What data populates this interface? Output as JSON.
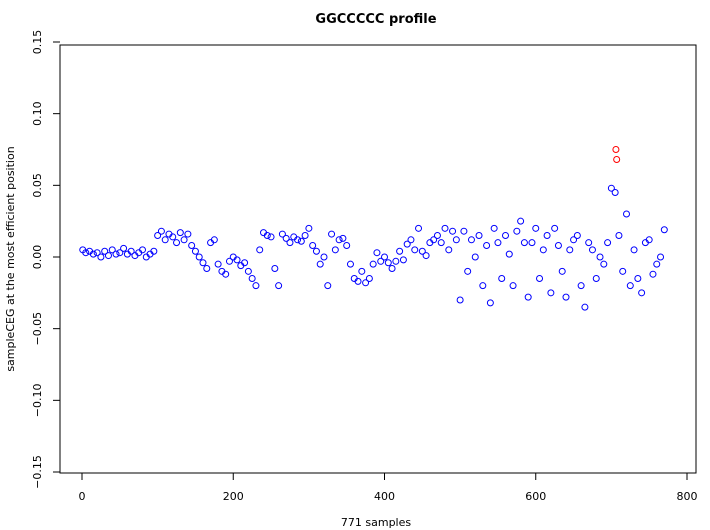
{
  "chart_data": {
    "type": "scatter",
    "title": "GGCCCCC profile",
    "xlabel": "771 samples",
    "ylabel": "sampleCEG at the most efficient position",
    "xlim": [
      -30,
      800
    ],
    "ylim": [
      -0.15,
      0.15
    ],
    "xticks": [
      0,
      200,
      400,
      600,
      800
    ],
    "yticks": [
      -0.15,
      -0.1,
      -0.05,
      0.0,
      0.05,
      0.1,
      0.15
    ],
    "xtick_labels": [
      "0",
      "200",
      "400",
      "600",
      "800"
    ],
    "ytick_labels": [
      "−0.15",
      "−0.10",
      "−0.05",
      "0.00",
      "0.05",
      "0.10",
      "0.15"
    ],
    "grid": false,
    "marker": "open-circle",
    "colors": {
      "normal": "#0000ff",
      "highlight": "#ff0000"
    },
    "series": [
      {
        "color": "#0000ff",
        "x": [
          1,
          5,
          10,
          15,
          20,
          25,
          30,
          35,
          40,
          45,
          50,
          55,
          60,
          65,
          70,
          75,
          80,
          85,
          90,
          95,
          100,
          105,
          110,
          115,
          120,
          125,
          130,
          135,
          140,
          145,
          150,
          155,
          160,
          165,
          170,
          175,
          180,
          185,
          190,
          195,
          200,
          205,
          210,
          215,
          220,
          225,
          230,
          235,
          240,
          245,
          250,
          255,
          260,
          265,
          270,
          275,
          280,
          285,
          290,
          295,
          300,
          305,
          310,
          315,
          320,
          325,
          330,
          335,
          340,
          345,
          350,
          355,
          360,
          365,
          370,
          375,
          380,
          385,
          390,
          395,
          400,
          405,
          410,
          415,
          420,
          425,
          430,
          435,
          440,
          445,
          450,
          455,
          460,
          465,
          470,
          475,
          480,
          485,
          490,
          495,
          500,
          505,
          510,
          515,
          520,
          525,
          530,
          535,
          540,
          545,
          550,
          555,
          560,
          565,
          570,
          575,
          580,
          585,
          590,
          595,
          600,
          605,
          610,
          615,
          620,
          625,
          630,
          635,
          640,
          645,
          650,
          655,
          660,
          665,
          670,
          675,
          680,
          685,
          690,
          695,
          700,
          705,
          710,
          715,
          720,
          725,
          730,
          735,
          740,
          745,
          750,
          755,
          760,
          765,
          770
        ],
        "y": [
          0.005,
          0.003,
          0.004,
          0.002,
          0.003,
          0.0,
          0.004,
          0.001,
          0.005,
          0.002,
          0.003,
          0.006,
          0.002,
          0.004,
          0.001,
          0.003,
          0.005,
          0.0,
          0.002,
          0.004,
          0.015,
          0.018,
          0.012,
          0.016,
          0.014,
          0.01,
          0.017,
          0.012,
          0.016,
          0.008,
          0.004,
          0.0,
          -0.004,
          -0.008,
          0.01,
          0.012,
          -0.005,
          -0.01,
          -0.012,
          -0.003,
          0.0,
          -0.002,
          -0.006,
          -0.004,
          -0.01,
          -0.015,
          -0.02,
          0.005,
          0.017,
          0.015,
          0.014,
          -0.008,
          -0.02,
          0.016,
          0.013,
          0.01,
          0.014,
          0.012,
          0.011,
          0.015,
          0.02,
          0.008,
          0.004,
          -0.005,
          0.0,
          -0.02,
          0.016,
          0.005,
          0.012,
          0.013,
          0.008,
          -0.005,
          -0.015,
          -0.017,
          -0.01,
          -0.018,
          -0.015,
          -0.005,
          0.003,
          -0.003,
          0.0,
          -0.004,
          -0.008,
          -0.003,
          0.004,
          -0.002,
          0.009,
          0.012,
          0.005,
          0.02,
          0.004,
          0.001,
          0.01,
          0.012,
          0.015,
          0.01,
          0.02,
          0.005,
          0.018,
          0.012,
          -0.03,
          0.018,
          -0.01,
          0.012,
          0.0,
          0.015,
          -0.02,
          0.008,
          -0.032,
          0.02,
          0.01,
          -0.015,
          0.015,
          0.002,
          -0.02,
          0.018,
          0.025,
          0.01,
          -0.028,
          0.01,
          0.02,
          -0.015,
          0.005,
          0.015,
          -0.025,
          0.02,
          0.008,
          -0.01,
          -0.028,
          0.005,
          0.012,
          0.015,
          -0.02,
          -0.035,
          0.01,
          0.005,
          -0.015,
          0.0,
          -0.005,
          0.01,
          0.048,
          0.045,
          0.015,
          -0.01,
          0.03,
          -0.02,
          0.005,
          -0.015,
          -0.025,
          0.01,
          0.012,
          -0.012,
          -0.005,
          0.0,
          0.019
        ]
      },
      {
        "color": "#ff0000",
        "x": [
          706,
          707
        ],
        "y": [
          0.075,
          0.068
        ]
      }
    ]
  }
}
